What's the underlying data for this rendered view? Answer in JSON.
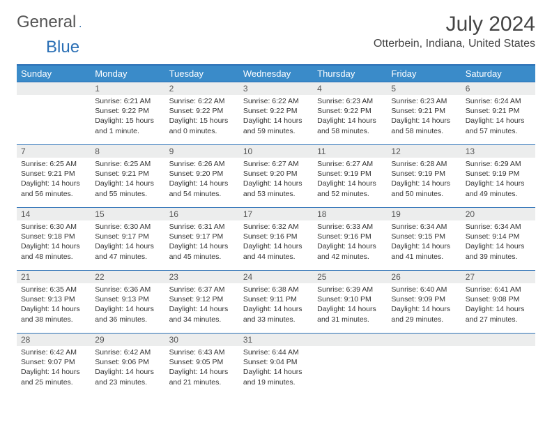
{
  "logo": {
    "text_gray": "General",
    "text_blue": "Blue"
  },
  "title": "July 2024",
  "location": "Otterbein, Indiana, United States",
  "colors": {
    "header_bg": "#3a8bc9",
    "header_border": "#2a6fb5",
    "daynum_bg": "#eceded",
    "text": "#333333"
  },
  "weekdays": [
    "Sunday",
    "Monday",
    "Tuesday",
    "Wednesday",
    "Thursday",
    "Friday",
    "Saturday"
  ],
  "weeks": [
    [
      null,
      {
        "n": "1",
        "sr": "Sunrise: 6:21 AM",
        "ss": "Sunset: 9:22 PM",
        "dl": "Daylight: 15 hours and 1 minute."
      },
      {
        "n": "2",
        "sr": "Sunrise: 6:22 AM",
        "ss": "Sunset: 9:22 PM",
        "dl": "Daylight: 15 hours and 0 minutes."
      },
      {
        "n": "3",
        "sr": "Sunrise: 6:22 AM",
        "ss": "Sunset: 9:22 PM",
        "dl": "Daylight: 14 hours and 59 minutes."
      },
      {
        "n": "4",
        "sr": "Sunrise: 6:23 AM",
        "ss": "Sunset: 9:22 PM",
        "dl": "Daylight: 14 hours and 58 minutes."
      },
      {
        "n": "5",
        "sr": "Sunrise: 6:23 AM",
        "ss": "Sunset: 9:21 PM",
        "dl": "Daylight: 14 hours and 58 minutes."
      },
      {
        "n": "6",
        "sr": "Sunrise: 6:24 AM",
        "ss": "Sunset: 9:21 PM",
        "dl": "Daylight: 14 hours and 57 minutes."
      }
    ],
    [
      {
        "n": "7",
        "sr": "Sunrise: 6:25 AM",
        "ss": "Sunset: 9:21 PM",
        "dl": "Daylight: 14 hours and 56 minutes."
      },
      {
        "n": "8",
        "sr": "Sunrise: 6:25 AM",
        "ss": "Sunset: 9:21 PM",
        "dl": "Daylight: 14 hours and 55 minutes."
      },
      {
        "n": "9",
        "sr": "Sunrise: 6:26 AM",
        "ss": "Sunset: 9:20 PM",
        "dl": "Daylight: 14 hours and 54 minutes."
      },
      {
        "n": "10",
        "sr": "Sunrise: 6:27 AM",
        "ss": "Sunset: 9:20 PM",
        "dl": "Daylight: 14 hours and 53 minutes."
      },
      {
        "n": "11",
        "sr": "Sunrise: 6:27 AM",
        "ss": "Sunset: 9:19 PM",
        "dl": "Daylight: 14 hours and 52 minutes."
      },
      {
        "n": "12",
        "sr": "Sunrise: 6:28 AM",
        "ss": "Sunset: 9:19 PM",
        "dl": "Daylight: 14 hours and 50 minutes."
      },
      {
        "n": "13",
        "sr": "Sunrise: 6:29 AM",
        "ss": "Sunset: 9:19 PM",
        "dl": "Daylight: 14 hours and 49 minutes."
      }
    ],
    [
      {
        "n": "14",
        "sr": "Sunrise: 6:30 AM",
        "ss": "Sunset: 9:18 PM",
        "dl": "Daylight: 14 hours and 48 minutes."
      },
      {
        "n": "15",
        "sr": "Sunrise: 6:30 AM",
        "ss": "Sunset: 9:17 PM",
        "dl": "Daylight: 14 hours and 47 minutes."
      },
      {
        "n": "16",
        "sr": "Sunrise: 6:31 AM",
        "ss": "Sunset: 9:17 PM",
        "dl": "Daylight: 14 hours and 45 minutes."
      },
      {
        "n": "17",
        "sr": "Sunrise: 6:32 AM",
        "ss": "Sunset: 9:16 PM",
        "dl": "Daylight: 14 hours and 44 minutes."
      },
      {
        "n": "18",
        "sr": "Sunrise: 6:33 AM",
        "ss": "Sunset: 9:16 PM",
        "dl": "Daylight: 14 hours and 42 minutes."
      },
      {
        "n": "19",
        "sr": "Sunrise: 6:34 AM",
        "ss": "Sunset: 9:15 PM",
        "dl": "Daylight: 14 hours and 41 minutes."
      },
      {
        "n": "20",
        "sr": "Sunrise: 6:34 AM",
        "ss": "Sunset: 9:14 PM",
        "dl": "Daylight: 14 hours and 39 minutes."
      }
    ],
    [
      {
        "n": "21",
        "sr": "Sunrise: 6:35 AM",
        "ss": "Sunset: 9:13 PM",
        "dl": "Daylight: 14 hours and 38 minutes."
      },
      {
        "n": "22",
        "sr": "Sunrise: 6:36 AM",
        "ss": "Sunset: 9:13 PM",
        "dl": "Daylight: 14 hours and 36 minutes."
      },
      {
        "n": "23",
        "sr": "Sunrise: 6:37 AM",
        "ss": "Sunset: 9:12 PM",
        "dl": "Daylight: 14 hours and 34 minutes."
      },
      {
        "n": "24",
        "sr": "Sunrise: 6:38 AM",
        "ss": "Sunset: 9:11 PM",
        "dl": "Daylight: 14 hours and 33 minutes."
      },
      {
        "n": "25",
        "sr": "Sunrise: 6:39 AM",
        "ss": "Sunset: 9:10 PM",
        "dl": "Daylight: 14 hours and 31 minutes."
      },
      {
        "n": "26",
        "sr": "Sunrise: 6:40 AM",
        "ss": "Sunset: 9:09 PM",
        "dl": "Daylight: 14 hours and 29 minutes."
      },
      {
        "n": "27",
        "sr": "Sunrise: 6:41 AM",
        "ss": "Sunset: 9:08 PM",
        "dl": "Daylight: 14 hours and 27 minutes."
      }
    ],
    [
      {
        "n": "28",
        "sr": "Sunrise: 6:42 AM",
        "ss": "Sunset: 9:07 PM",
        "dl": "Daylight: 14 hours and 25 minutes."
      },
      {
        "n": "29",
        "sr": "Sunrise: 6:42 AM",
        "ss": "Sunset: 9:06 PM",
        "dl": "Daylight: 14 hours and 23 minutes."
      },
      {
        "n": "30",
        "sr": "Sunrise: 6:43 AM",
        "ss": "Sunset: 9:05 PM",
        "dl": "Daylight: 14 hours and 21 minutes."
      },
      {
        "n": "31",
        "sr": "Sunrise: 6:44 AM",
        "ss": "Sunset: 9:04 PM",
        "dl": "Daylight: 14 hours and 19 minutes."
      },
      null,
      null,
      null
    ]
  ]
}
